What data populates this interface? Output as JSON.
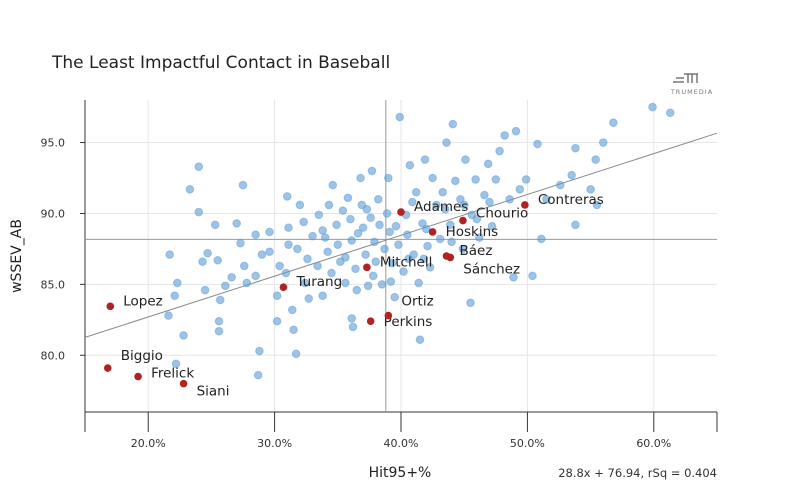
{
  "chart_data": {
    "type": "scatter",
    "title": "The Least Impactful Contact in Baseball",
    "xlabel": "Hit95+%",
    "ylabel": "wSSEV_AB",
    "xlim": [
      15,
      65
    ],
    "ylim": [
      76,
      98
    ],
    "x_ticks": [
      20,
      30,
      40,
      50,
      60
    ],
    "x_tick_labels": [
      "20.0%",
      "30.0%",
      "40.0%",
      "50.0%",
      "60.0%"
    ],
    "y_ticks": [
      80,
      85,
      90,
      95
    ],
    "y_tick_labels": [
      "80.0",
      "85.0",
      "90.0",
      "95.0"
    ],
    "grid": true,
    "mean_x": 38.8,
    "mean_y": 88.17,
    "regression": {
      "slope": 28.8,
      "intercept": 76.94,
      "rsq": 0.404,
      "label": "28.8x + 76.94, rSq = 0.404"
    },
    "logo_text": "TRUMEDIA",
    "colors": {
      "points": "#5b9bd5",
      "highlight": "#b22222",
      "lines": "#888888"
    },
    "highlighted": [
      {
        "name": "Lopez",
        "x": 17.0,
        "y": 83.45
      },
      {
        "name": "Biggio",
        "x": 16.8,
        "y": 79.1
      },
      {
        "name": "Frelick",
        "x": 19.2,
        "y": 78.5
      },
      {
        "name": "Siani",
        "x": 22.8,
        "y": 78.0
      },
      {
        "name": "Turang",
        "x": 30.7,
        "y": 84.8
      },
      {
        "name": "Mitchell",
        "x": 37.3,
        "y": 86.2
      },
      {
        "name": "Perkins",
        "x": 37.6,
        "y": 82.4
      },
      {
        "name": "Ortiz",
        "x": 39.0,
        "y": 82.8
      },
      {
        "name": "Adames",
        "x": 40.0,
        "y": 90.1
      },
      {
        "name": "Hoskins",
        "x": 42.5,
        "y": 88.7
      },
      {
        "name": "Báez",
        "x": 43.6,
        "y": 87.0
      },
      {
        "name": "Sánchez",
        "x": 43.9,
        "y": 86.9
      },
      {
        "name": "Chourio",
        "x": 44.9,
        "y": 89.5
      },
      {
        "name": "Contreras",
        "x": 49.8,
        "y": 90.6
      }
    ],
    "points": [
      [
        21.7,
        87.1
      ],
      [
        22.3,
        85.1
      ],
      [
        22.1,
        84.2
      ],
      [
        21.6,
        82.8
      ],
      [
        22.2,
        79.4
      ],
      [
        22.8,
        81.4
      ],
      [
        23.3,
        91.7
      ],
      [
        24.0,
        93.3
      ],
      [
        24.0,
        90.1
      ],
      [
        24.3,
        86.6
      ],
      [
        24.5,
        84.6
      ],
      [
        24.7,
        87.2
      ],
      [
        25.3,
        89.2
      ],
      [
        25.5,
        86.7
      ],
      [
        25.7,
        83.9
      ],
      [
        25.6,
        82.4
      ],
      [
        25.6,
        81.7
      ],
      [
        26.1,
        84.9
      ],
      [
        26.6,
        85.5
      ],
      [
        27.0,
        89.3
      ],
      [
        27.3,
        87.9
      ],
      [
        27.5,
        92.0
      ],
      [
        27.6,
        86.3
      ],
      [
        27.8,
        85.1
      ],
      [
        28.5,
        88.5
      ],
      [
        28.5,
        85.6
      ],
      [
        28.8,
        80.3
      ],
      [
        28.7,
        78.6
      ],
      [
        29.0,
        87.1
      ],
      [
        29.6,
        88.7
      ],
      [
        29.6,
        87.3
      ],
      [
        30.2,
        84.2
      ],
      [
        30.2,
        82.4
      ],
      [
        30.4,
        86.3
      ],
      [
        31.0,
        91.2
      ],
      [
        31.1,
        87.8
      ],
      [
        31.1,
        89.0
      ],
      [
        31.4,
        83.2
      ],
      [
        31.5,
        81.8
      ],
      [
        31.7,
        80.1
      ],
      [
        31.8,
        87.5
      ],
      [
        32.0,
        90.6
      ],
      [
        32.3,
        89.4
      ],
      [
        32.4,
        85.1
      ],
      [
        32.6,
        86.8
      ],
      [
        32.7,
        84.0
      ],
      [
        33.0,
        88.4
      ],
      [
        33.4,
        86.3
      ],
      [
        33.8,
        88.8
      ],
      [
        33.8,
        84.2
      ],
      [
        34.2,
        87.3
      ],
      [
        34.3,
        90.6
      ],
      [
        34.5,
        85.8
      ],
      [
        34.6,
        92.0
      ],
      [
        34.9,
        89.2
      ],
      [
        35.0,
        87.8
      ],
      [
        35.2,
        86.6
      ],
      [
        35.6,
        85.1
      ],
      [
        35.8,
        91.1
      ],
      [
        36.0,
        89.6
      ],
      [
        36.1,
        88.1
      ],
      [
        36.1,
        82.6
      ],
      [
        36.2,
        82.0
      ],
      [
        36.4,
        86.1
      ],
      [
        36.5,
        84.6
      ],
      [
        36.8,
        92.5
      ],
      [
        36.9,
        90.6
      ],
      [
        37.0,
        89.0
      ],
      [
        37.2,
        87.1
      ],
      [
        37.4,
        84.9
      ],
      [
        37.6,
        89.7
      ],
      [
        37.7,
        93.0
      ],
      [
        37.9,
        88.0
      ],
      [
        38.0,
        86.6
      ],
      [
        38.2,
        91.0
      ],
      [
        38.3,
        89.2
      ],
      [
        38.5,
        85.0
      ],
      [
        38.7,
        87.5
      ],
      [
        39.0,
        92.5
      ],
      [
        39.1,
        88.7
      ],
      [
        39.3,
        86.5
      ],
      [
        39.5,
        84.1
      ],
      [
        39.8,
        87.8
      ],
      [
        39.9,
        96.8
      ],
      [
        40.2,
        85.9
      ],
      [
        40.4,
        89.9
      ],
      [
        40.5,
        88.5
      ],
      [
        40.7,
        93.4
      ],
      [
        41.0,
        87.1
      ],
      [
        41.2,
        91.5
      ],
      [
        41.4,
        85.1
      ],
      [
        41.5,
        81.1
      ],
      [
        41.7,
        89.3
      ],
      [
        41.9,
        93.8
      ],
      [
        42.1,
        87.7
      ],
      [
        42.3,
        86.2
      ],
      [
        42.5,
        92.5
      ],
      [
        42.8,
        90.6
      ],
      [
        43.1,
        88.2
      ],
      [
        43.3,
        91.5
      ],
      [
        43.6,
        95.0
      ],
      [
        43.9,
        89.2
      ],
      [
        44.1,
        96.3
      ],
      [
        44.3,
        92.3
      ],
      [
        44.7,
        91.0
      ],
      [
        44.9,
        87.5
      ],
      [
        45.1,
        93.8
      ],
      [
        45.5,
        83.7
      ],
      [
        45.6,
        89.9
      ],
      [
        45.9,
        92.4
      ],
      [
        46.2,
        88.3
      ],
      [
        46.6,
        91.3
      ],
      [
        46.9,
        93.5
      ],
      [
        47.2,
        89.1
      ],
      [
        47.5,
        92.4
      ],
      [
        47.8,
        94.4
      ],
      [
        48.2,
        95.5
      ],
      [
        48.6,
        91.0
      ],
      [
        48.9,
        85.5
      ],
      [
        49.1,
        95.8
      ],
      [
        49.4,
        91.7
      ],
      [
        49.9,
        92.4
      ],
      [
        50.4,
        85.6
      ],
      [
        50.8,
        94.9
      ],
      [
        51.1,
        88.2
      ],
      [
        51.5,
        91.0
      ],
      [
        52.6,
        92.0
      ],
      [
        53.5,
        92.7
      ],
      [
        53.8,
        94.6
      ],
      [
        53.8,
        89.2
      ],
      [
        55.0,
        91.7
      ],
      [
        55.4,
        93.8
      ],
      [
        55.5,
        90.6
      ],
      [
        56.0,
        95.0
      ],
      [
        56.8,
        96.4
      ],
      [
        59.9,
        97.5
      ],
      [
        61.3,
        97.1
      ],
      [
        33.5,
        89.9
      ],
      [
        35.4,
        90.2
      ],
      [
        36.6,
        88.6
      ],
      [
        37.3,
        90.3
      ],
      [
        38.9,
        90.0
      ],
      [
        39.6,
        89.1
      ],
      [
        40.9,
        90.8
      ],
      [
        42.0,
        88.9
      ],
      [
        43.5,
        90.3
      ],
      [
        44.0,
        88.0
      ],
      [
        45.0,
        90.6
      ],
      [
        46.0,
        89.6
      ],
      [
        47.0,
        90.8
      ],
      [
        34.0,
        88.3
      ],
      [
        35.6,
        86.9
      ],
      [
        37.8,
        85.6
      ],
      [
        39.2,
        85.2
      ],
      [
        40.6,
        86.8
      ],
      [
        41.8,
        86.8
      ],
      [
        30.9,
        85.8
      ]
    ]
  }
}
